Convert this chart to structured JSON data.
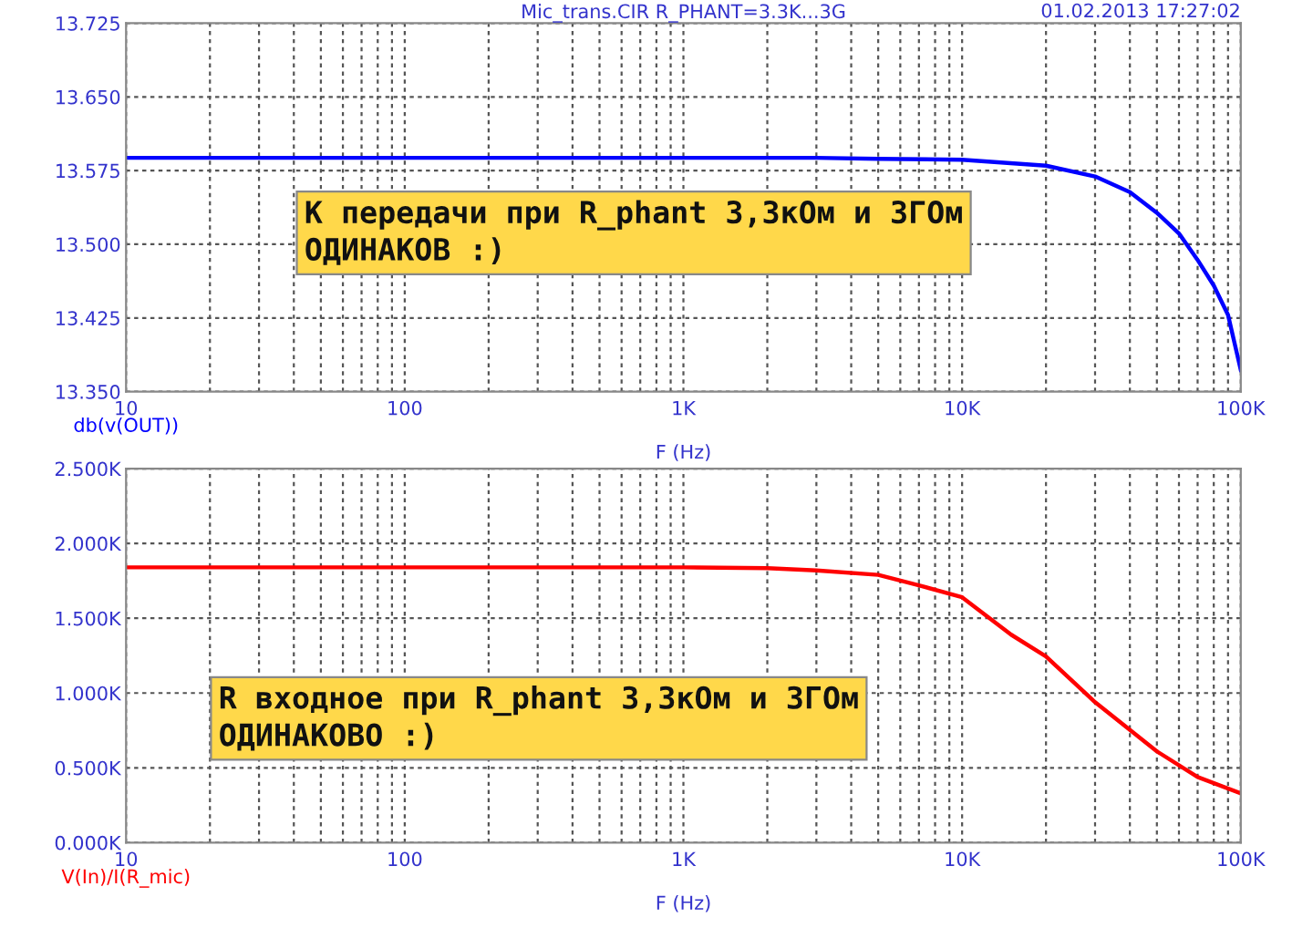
{
  "chart_data": [
    {
      "type": "line",
      "title": "Mic_trans.CIR R_PHANT=3.3K...3G",
      "annotations": [
        "01.02.2013 17:27:02",
        "К передачи при R_phant 3,3кОм и 3ГОм\nОДИНАКОВ :)"
      ],
      "xlabel": "F (Hz)",
      "ylabel": "db(v(OUT))",
      "log": "x",
      "x": [
        10,
        100,
        1000,
        3000,
        5000,
        10000,
        20000,
        30000,
        40000,
        50000,
        60000,
        70000,
        80000,
        90000,
        100000
      ],
      "series": [
        {
          "color": "#0000ff",
          "values": [
            13.588,
            13.588,
            13.588,
            13.588,
            13.587,
            13.586,
            13.58,
            13.569,
            13.553,
            13.532,
            13.511,
            13.484,
            13.458,
            13.428,
            13.372
          ]
        }
      ],
      "xlim": [
        10,
        100000
      ],
      "ylim": [
        13.35,
        13.725
      ],
      "xticks": [
        {
          "value": 10,
          "label": "10"
        },
        {
          "value": 20,
          "label": null
        },
        {
          "value": 30,
          "label": null
        },
        {
          "value": 40,
          "label": null
        },
        {
          "value": 50,
          "label": null
        },
        {
          "value": 60,
          "label": null
        },
        {
          "value": 70,
          "label": null
        },
        {
          "value": 80,
          "label": null
        },
        {
          "value": 90,
          "label": null
        },
        {
          "value": 100,
          "label": "100"
        },
        {
          "value": 200,
          "label": null
        },
        {
          "value": 300,
          "label": null
        },
        {
          "value": 400,
          "label": null
        },
        {
          "value": 500,
          "label": null
        },
        {
          "value": 600,
          "label": null
        },
        {
          "value": 700,
          "label": null
        },
        {
          "value": 800,
          "label": null
        },
        {
          "value": 900,
          "label": null
        },
        {
          "value": 1000,
          "label": "1K"
        },
        {
          "value": 2000,
          "label": null
        },
        {
          "value": 3000,
          "label": null
        },
        {
          "value": 4000,
          "label": null
        },
        {
          "value": 5000,
          "label": null
        },
        {
          "value": 6000,
          "label": null
        },
        {
          "value": 7000,
          "label": null
        },
        {
          "value": 8000,
          "label": null
        },
        {
          "value": 9000,
          "label": null
        },
        {
          "value": 10000,
          "label": "10K"
        },
        {
          "value": 20000,
          "label": null
        },
        {
          "value": 30000,
          "label": null
        },
        {
          "value": 40000,
          "label": null
        },
        {
          "value": 50000,
          "label": null
        },
        {
          "value": 60000,
          "label": null
        },
        {
          "value": 70000,
          "label": null
        },
        {
          "value": 80000,
          "label": null
        },
        {
          "value": 90000,
          "label": null
        },
        {
          "value": 100000,
          "label": "100K"
        }
      ],
      "yticks": [
        {
          "value": 13.35,
          "label": "13.350"
        },
        {
          "value": 13.425,
          "label": "13.425"
        },
        {
          "value": 13.5,
          "label": "13.500"
        },
        {
          "value": 13.575,
          "label": "13.575"
        },
        {
          "value": 13.65,
          "label": "13.650"
        },
        {
          "value": 13.725,
          "label": "13.725"
        }
      ],
      "grid": true,
      "line_style": "solid"
    },
    {
      "type": "line",
      "annotations": [
        "R входное при R_phant 3,3кОм и 3ГОм\nОДИНАКОВО :)"
      ],
      "xlabel": "F (Hz)",
      "ylabel": "V(In)/I(R_mic)",
      "log": "x",
      "x": [
        10,
        100,
        1000,
        2000,
        3000,
        5000,
        7000,
        10000,
        15000,
        20000,
        30000,
        50000,
        70000,
        100000
      ],
      "series": [
        {
          "color": "#ff0000",
          "values": [
            1840,
            1840,
            1840,
            1835,
            1820,
            1790,
            1720,
            1640,
            1390,
            1244,
            939,
            610,
            439,
            329
          ]
        }
      ],
      "xlim": [
        10,
        100000
      ],
      "ylim": [
        0,
        2500
      ],
      "xticks": [
        {
          "value": 10,
          "label": "10"
        },
        {
          "value": 20,
          "label": null
        },
        {
          "value": 30,
          "label": null
        },
        {
          "value": 40,
          "label": null
        },
        {
          "value": 50,
          "label": null
        },
        {
          "value": 60,
          "label": null
        },
        {
          "value": 70,
          "label": null
        },
        {
          "value": 80,
          "label": null
        },
        {
          "value": 90,
          "label": null
        },
        {
          "value": 100,
          "label": "100"
        },
        {
          "value": 200,
          "label": null
        },
        {
          "value": 300,
          "label": null
        },
        {
          "value": 400,
          "label": null
        },
        {
          "value": 500,
          "label": null
        },
        {
          "value": 600,
          "label": null
        },
        {
          "value": 700,
          "label": null
        },
        {
          "value": 800,
          "label": null
        },
        {
          "value": 900,
          "label": null
        },
        {
          "value": 1000,
          "label": "1K"
        },
        {
          "value": 2000,
          "label": null
        },
        {
          "value": 3000,
          "label": null
        },
        {
          "value": 4000,
          "label": null
        },
        {
          "value": 5000,
          "label": null
        },
        {
          "value": 6000,
          "label": null
        },
        {
          "value": 7000,
          "label": null
        },
        {
          "value": 8000,
          "label": null
        },
        {
          "value": 9000,
          "label": null
        },
        {
          "value": 10000,
          "label": "10K"
        },
        {
          "value": 20000,
          "label": null
        },
        {
          "value": 30000,
          "label": null
        },
        {
          "value": 40000,
          "label": null
        },
        {
          "value": 50000,
          "label": null
        },
        {
          "value": 60000,
          "label": null
        },
        {
          "value": 70000,
          "label": null
        },
        {
          "value": 80000,
          "label": null
        },
        {
          "value": 90000,
          "label": null
        },
        {
          "value": 100000,
          "label": "100K"
        }
      ],
      "yticks": [
        {
          "value": 0,
          "label": "0.000K"
        },
        {
          "value": 500,
          "label": "0.500K"
        },
        {
          "value": 1000,
          "label": "1.000K"
        },
        {
          "value": 1500,
          "label": "1.500K"
        },
        {
          "value": 2000,
          "label": "2.000K"
        },
        {
          "value": 2500,
          "label": "2.500K"
        }
      ],
      "grid": true,
      "line_style": "solid"
    }
  ]
}
